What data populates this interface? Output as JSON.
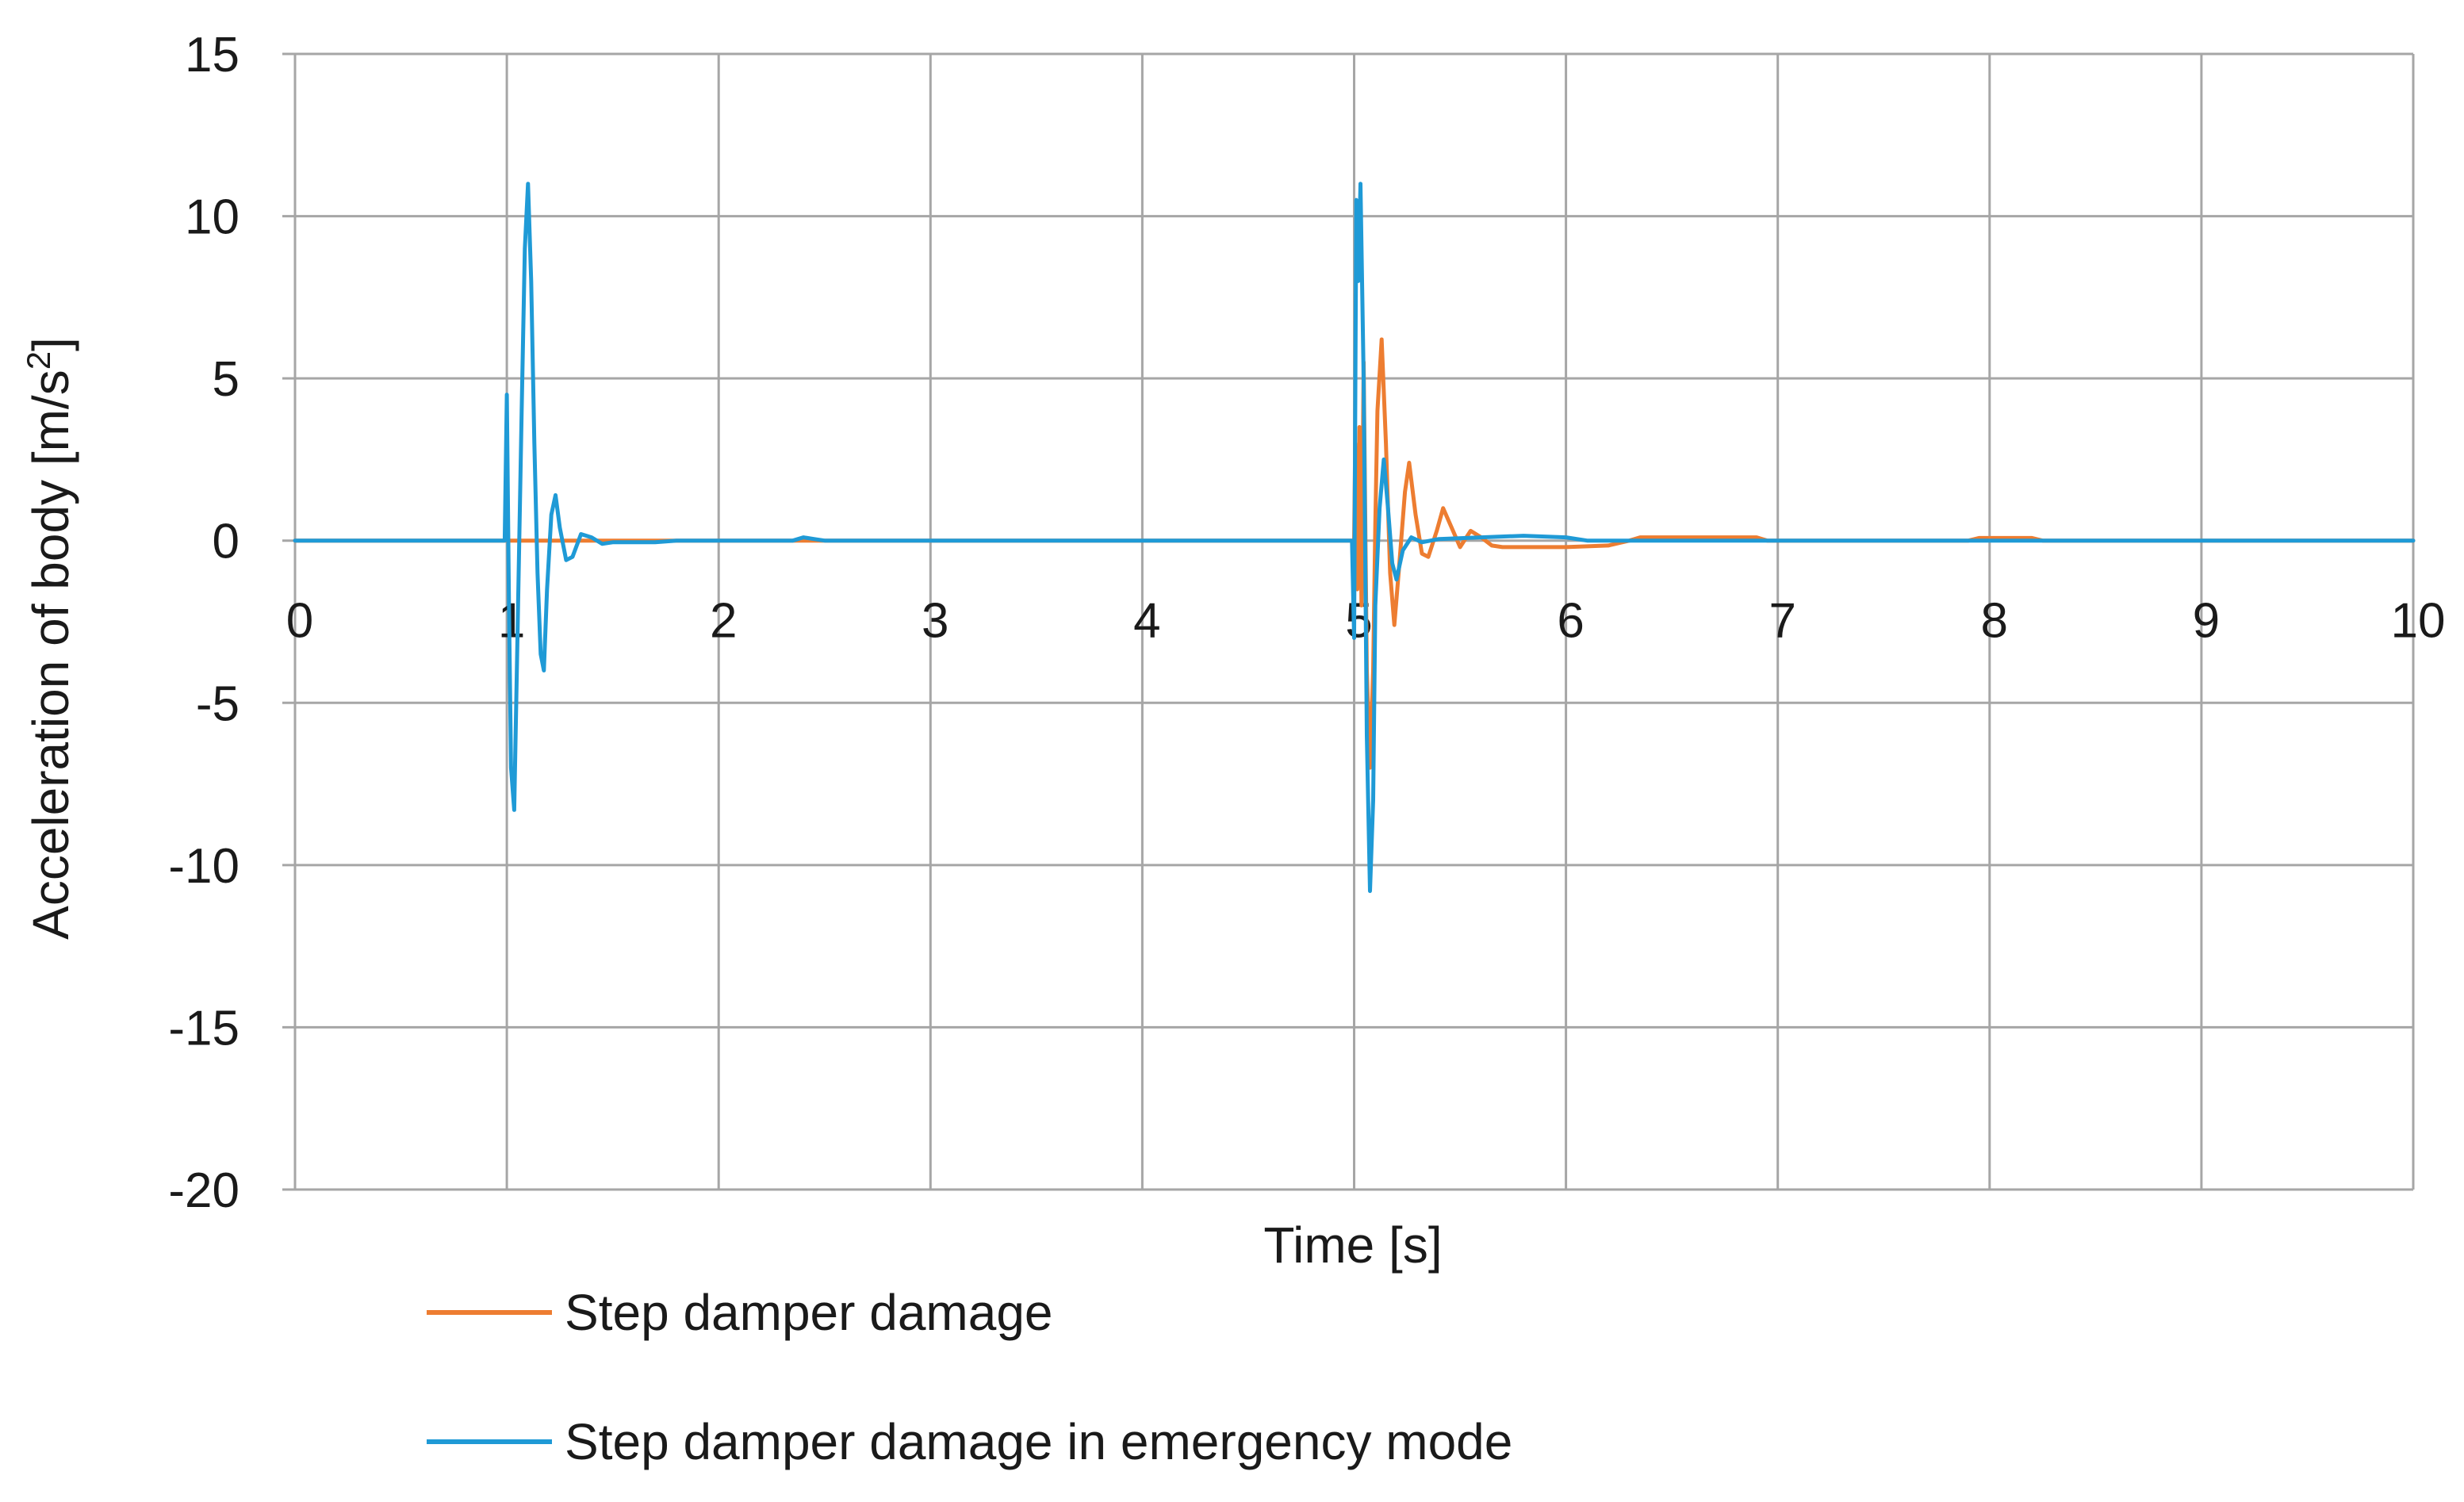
{
  "chart_data": {
    "type": "line",
    "title": "",
    "xlabel": "Time [s]",
    "ylabel": "Acceleration of body [m/s2]",
    "ylabel_main": "Acceleration of body [m/s",
    "ylabel_sup": "2",
    "ylabel_end": "]",
    "xlim": [
      0,
      10
    ],
    "ylim": [
      -20,
      15
    ],
    "x_ticks": [
      0,
      1,
      2,
      3,
      4,
      5,
      6,
      7,
      8,
      9,
      10
    ],
    "y_ticks": [
      15,
      10,
      5,
      0,
      -5,
      -10,
      -15,
      -20
    ],
    "grid": true,
    "legend_position": "bottom",
    "series": [
      {
        "name": "Step damper damage",
        "color": "#ED7D31",
        "points": [
          [
            0,
            0
          ],
          [
            1.0,
            0
          ],
          [
            5.0,
            0
          ],
          [
            5.005,
            3.0
          ],
          [
            5.015,
            -1.5
          ],
          [
            5.025,
            3.5
          ],
          [
            5.035,
            -2.0
          ],
          [
            5.045,
            5.5
          ],
          [
            5.06,
            -4.0
          ],
          [
            5.075,
            -7.0
          ],
          [
            5.09,
            -4.0
          ],
          [
            5.1,
            0.5
          ],
          [
            5.11,
            4.0
          ],
          [
            5.13,
            6.2
          ],
          [
            5.15,
            3.0
          ],
          [
            5.17,
            -1.0
          ],
          [
            5.19,
            -2.6
          ],
          [
            5.21,
            -1.0
          ],
          [
            5.24,
            1.5
          ],
          [
            5.26,
            2.4
          ],
          [
            5.29,
            0.8
          ],
          [
            5.32,
            -0.4
          ],
          [
            5.35,
            -0.5
          ],
          [
            5.39,
            0.3
          ],
          [
            5.42,
            1.0
          ],
          [
            5.46,
            0.4
          ],
          [
            5.5,
            -0.2
          ],
          [
            5.55,
            0.3
          ],
          [
            5.6,
            0.1
          ],
          [
            5.65,
            -0.15
          ],
          [
            5.7,
            -0.2
          ],
          [
            6.0,
            -0.2
          ],
          [
            6.2,
            -0.15
          ],
          [
            6.3,
            0
          ],
          [
            6.35,
            0.1
          ],
          [
            6.9,
            0.1
          ],
          [
            6.95,
            0
          ],
          [
            7.9,
            0
          ],
          [
            7.95,
            0.08
          ],
          [
            8.2,
            0.08
          ],
          [
            8.25,
            0
          ],
          [
            10,
            0
          ]
        ]
      },
      {
        "name": "Step damper damage in emergency mode",
        "color": "#1F9AD6",
        "points": [
          [
            0,
            0
          ],
          [
            0.99,
            0
          ],
          [
            1.0,
            4.5
          ],
          [
            1.01,
            -2.0
          ],
          [
            1.02,
            -7.0
          ],
          [
            1.035,
            -8.3
          ],
          [
            1.05,
            -3.0
          ],
          [
            1.07,
            4.0
          ],
          [
            1.085,
            9.0
          ],
          [
            1.1,
            11.0
          ],
          [
            1.115,
            8.0
          ],
          [
            1.13,
            3.0
          ],
          [
            1.145,
            -1.0
          ],
          [
            1.16,
            -3.5
          ],
          [
            1.175,
            -4.0
          ],
          [
            1.19,
            -1.5
          ],
          [
            1.21,
            0.8
          ],
          [
            1.23,
            1.4
          ],
          [
            1.25,
            0.4
          ],
          [
            1.28,
            -0.6
          ],
          [
            1.31,
            -0.5
          ],
          [
            1.35,
            0.2
          ],
          [
            1.4,
            0.1
          ],
          [
            1.45,
            -0.1
          ],
          [
            1.5,
            -0.05
          ],
          [
            1.7,
            -0.05
          ],
          [
            1.8,
            0
          ],
          [
            2.35,
            0
          ],
          [
            2.4,
            0.1
          ],
          [
            2.45,
            0.05
          ],
          [
            2.5,
            0
          ],
          [
            4.99,
            0
          ],
          [
            5.0,
            -3.0
          ],
          [
            5.01,
            10.5
          ],
          [
            5.02,
            8.0
          ],
          [
            5.03,
            11.0
          ],
          [
            5.045,
            5.0
          ],
          [
            5.06,
            -6.0
          ],
          [
            5.075,
            -10.8
          ],
          [
            5.09,
            -8.0
          ],
          [
            5.1,
            -2.0
          ],
          [
            5.12,
            1.0
          ],
          [
            5.14,
            2.5
          ],
          [
            5.16,
            1.0
          ],
          [
            5.18,
            -0.7
          ],
          [
            5.2,
            -1.2
          ],
          [
            5.23,
            -0.3
          ],
          [
            5.27,
            0.1
          ],
          [
            5.32,
            -0.05
          ],
          [
            5.4,
            0.05
          ],
          [
            5.6,
            0.1
          ],
          [
            5.8,
            0.15
          ],
          [
            6.0,
            0.1
          ],
          [
            6.1,
            0
          ],
          [
            10,
            0
          ]
        ]
      }
    ]
  }
}
